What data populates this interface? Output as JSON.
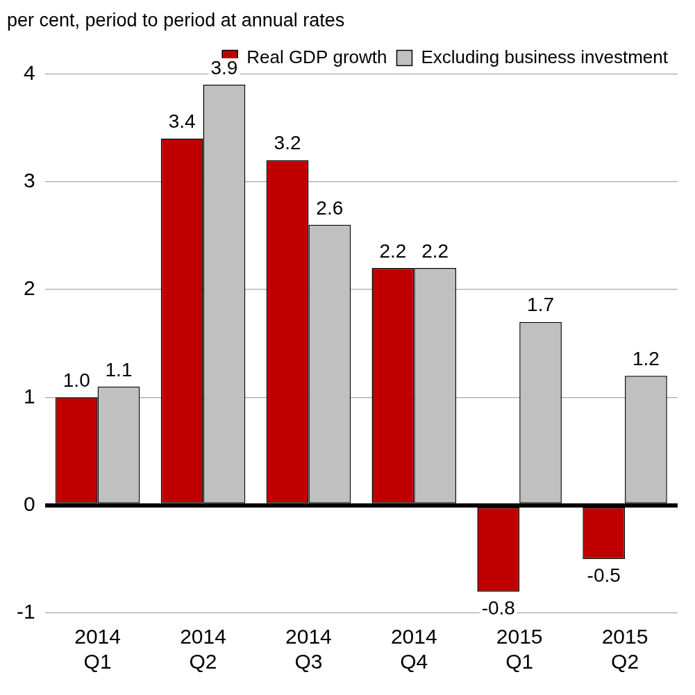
{
  "chart_data": {
    "type": "bar",
    "y_label": "per cent, period to period at annual rates",
    "categories": [
      [
        "2014",
        "Q1"
      ],
      [
        "2014",
        "Q2"
      ],
      [
        "2014",
        "Q3"
      ],
      [
        "2014",
        "Q4"
      ],
      [
        "2015",
        "Q1"
      ],
      [
        "2015",
        "Q2"
      ]
    ],
    "series": [
      {
        "name": "Real GDP growth",
        "color": "#c00000",
        "values": [
          1.0,
          3.4,
          3.2,
          2.2,
          -0.8,
          -0.5
        ],
        "value_labels": [
          "1.0",
          "3.4",
          "3.2",
          "2.2",
          "-0.8",
          "-0.5"
        ]
      },
      {
        "name": "Excluding business investment",
        "color": "#c0c0c0",
        "values": [
          1.1,
          3.9,
          2.6,
          2.2,
          1.7,
          1.2
        ],
        "value_labels": [
          "1.1",
          "3.9",
          "2.6",
          "2.2",
          "1.7",
          "1.2"
        ]
      }
    ],
    "ylim": [
      -1,
      4
    ],
    "yticks": [
      -1,
      0,
      1,
      2,
      3,
      4
    ],
    "grid": true,
    "legend": "upper right",
    "data_labels": true
  }
}
